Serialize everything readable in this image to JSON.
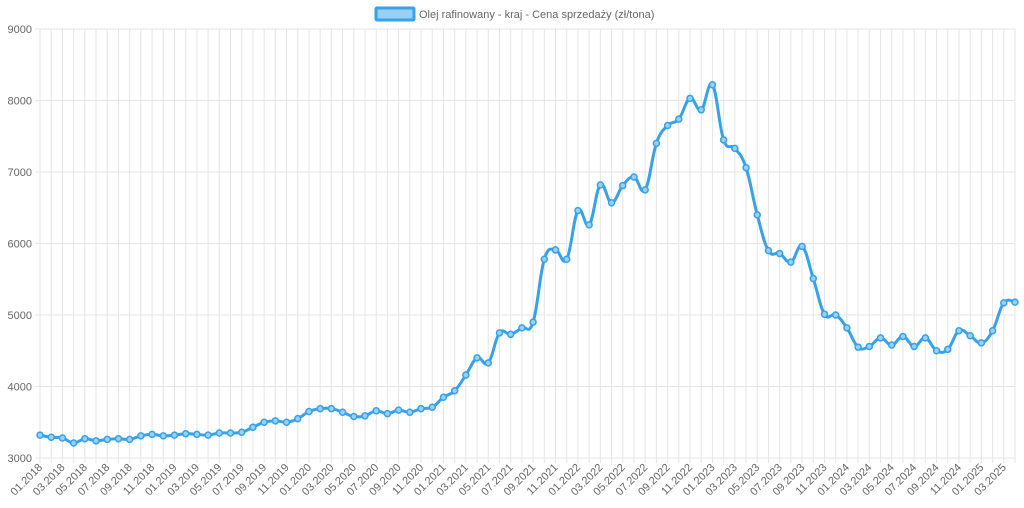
{
  "chart_data": {
    "type": "line",
    "legend": {
      "label": "Olej rafinowany - kraj - Cena sprzedaży (zł/tona)",
      "position": "top-center"
    },
    "colors": {
      "line": "#36a2eb",
      "fill": "#9ad0f5",
      "grid": "#e5e5e5",
      "tick_text": "#666666"
    },
    "grid": true,
    "ylim": [
      3000,
      9000
    ],
    "yticks": [
      "3000",
      "4000",
      "5000",
      "6000",
      "7000",
      "8000",
      "9000"
    ],
    "xtick_labels": [
      "01.2018",
      "03.2018",
      "05.2018",
      "07.2018",
      "09.2018",
      "11.2018",
      "01.2019",
      "03.2019",
      "05.2019",
      "07.2019",
      "09.2019",
      "11.2019",
      "01.2020",
      "03.2020",
      "05.2020",
      "07.2020",
      "09.2020",
      "11.2020",
      "01.2021",
      "03.2021",
      "05.2021",
      "07.2021",
      "09.2021",
      "11.2021",
      "01.2022",
      "03.2022",
      "05.2022",
      "07.2022",
      "09.2022",
      "11.2022",
      "01.2023",
      "03.2023",
      "05.2023",
      "07.2023",
      "09.2023",
      "11.2023",
      "01.2024",
      "03.2024",
      "05.2024",
      "07.2024",
      "09.2024",
      "11.2024",
      "01.2025",
      "03.2025"
    ],
    "x_start": "01.2018",
    "x_step": "1 month",
    "values": [
      3320,
      3290,
      3280,
      3210,
      3270,
      3240,
      3260,
      3270,
      3260,
      3310,
      3330,
      3310,
      3320,
      3340,
      3330,
      3320,
      3350,
      3350,
      3360,
      3430,
      3500,
      3520,
      3500,
      3550,
      3650,
      3690,
      3690,
      3640,
      3580,
      3590,
      3660,
      3620,
      3670,
      3640,
      3690,
      3710,
      3850,
      3940,
      4160,
      4400,
      4330,
      4750,
      4730,
      4820,
      4900,
      5780,
      5910,
      5780,
      6460,
      6260,
      6820,
      6570,
      6810,
      6930,
      6750,
      7400,
      7650,
      7740,
      8030,
      7870,
      8220,
      7450,
      7330,
      7060,
      6400,
      5900,
      5860,
      5740,
      5960,
      5510,
      5010,
      5000,
      4820,
      4550,
      4560,
      4680,
      4580,
      4700,
      4560,
      4680,
      4500,
      4520,
      4780,
      4710,
      4610,
      4780,
      5170,
      5180
    ]
  }
}
